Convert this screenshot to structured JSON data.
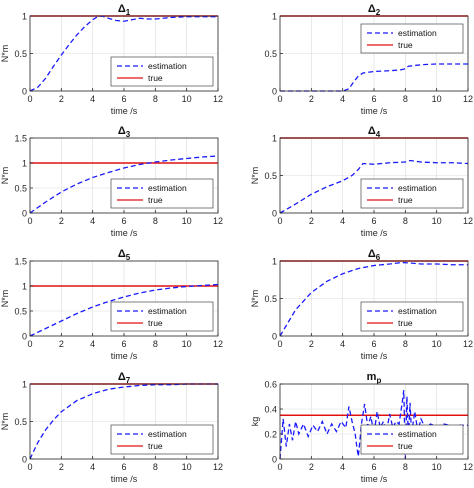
{
  "figure": {
    "xlabel": "time /s",
    "legend": {
      "estimation": "estimation",
      "true": "true"
    },
    "colors": {
      "estimation": "#1a1aff",
      "true": "#e01010",
      "axis": "#262626",
      "grid": "#dddddd"
    }
  },
  "chart_data": [
    {
      "type": "line",
      "title": "Δ1",
      "title_base": "Δ",
      "title_sub": "1",
      "xlabel": "time /s",
      "ylabel": "N*m",
      "xlim": [
        0,
        12
      ],
      "ylim": [
        0,
        1
      ],
      "xticks": [
        0,
        2,
        4,
        6,
        8,
        10,
        12
      ],
      "yticks": [
        0,
        0.5,
        1
      ],
      "ytick_labels": [
        "0",
        "0.5",
        "1"
      ],
      "grid": true,
      "legend_position": "bottom-right",
      "series": [
        {
          "name": "estimation",
          "style": "dashed",
          "x": [
            0,
            0.5,
            1,
            1.5,
            2,
            2.5,
            3,
            3.5,
            4,
            4.3,
            4.6,
            5,
            5.5,
            6,
            6.5,
            7,
            7.5,
            8,
            8.5,
            9,
            10,
            11,
            12
          ],
          "y": [
            0,
            0.05,
            0.17,
            0.33,
            0.48,
            0.62,
            0.75,
            0.86,
            0.95,
            0.99,
            1.0,
            0.97,
            0.94,
            0.93,
            0.95,
            0.97,
            0.96,
            0.96,
            0.97,
            0.98,
            0.99,
            0.99,
            0.99
          ]
        },
        {
          "name": "true",
          "style": "solid",
          "x": [
            0,
            12
          ],
          "y": [
            1,
            1
          ]
        }
      ]
    },
    {
      "type": "line",
      "title": "Δ2",
      "title_base": "Δ",
      "title_sub": "2",
      "xlabel": "time /s",
      "ylabel": "",
      "xlim": [
        0,
        12
      ],
      "ylim": [
        0,
        1
      ],
      "xticks": [
        0,
        2,
        4,
        6,
        8,
        10,
        12
      ],
      "yticks": [
        0,
        0.5,
        1
      ],
      "ytick_labels": [
        "0",
        "0.5",
        "1"
      ],
      "grid": true,
      "legend_position": "top-right",
      "series": [
        {
          "name": "estimation",
          "style": "dashed",
          "x": [
            0,
            2,
            4,
            4.4,
            4.7,
            5,
            5.3,
            6,
            7,
            7.6,
            7.9,
            8.2,
            9,
            10,
            11,
            12
          ],
          "y": [
            0,
            0,
            0,
            0.03,
            0.12,
            0.2,
            0.24,
            0.26,
            0.27,
            0.28,
            0.29,
            0.33,
            0.35,
            0.36,
            0.36,
            0.36
          ]
        },
        {
          "name": "true",
          "style": "solid",
          "x": [
            0,
            12
          ],
          "y": [
            1,
            1
          ]
        }
      ]
    },
    {
      "type": "line",
      "title": "Δ3",
      "title_base": "Δ",
      "title_sub": "3",
      "xlabel": "time /s",
      "ylabel": "N*m",
      "xlim": [
        0,
        12
      ],
      "ylim": [
        0,
        1.5
      ],
      "xticks": [
        0,
        2,
        4,
        6,
        8,
        10,
        12
      ],
      "yticks": [
        0,
        0.5,
        1,
        1.5
      ],
      "ytick_labels": [
        "0",
        "0.5",
        "1",
        "1.5"
      ],
      "grid": true,
      "legend_position": "bottom-right",
      "series": [
        {
          "name": "estimation",
          "style": "dashed",
          "x": [
            0,
            1,
            2,
            3,
            4,
            5,
            6,
            7,
            8,
            9,
            10,
            11,
            12
          ],
          "y": [
            0,
            0.22,
            0.42,
            0.58,
            0.71,
            0.81,
            0.9,
            0.97,
            1.02,
            1.06,
            1.09,
            1.12,
            1.14
          ]
        },
        {
          "name": "true",
          "style": "solid",
          "x": [
            0,
            12
          ],
          "y": [
            1,
            1
          ]
        }
      ]
    },
    {
      "type": "line",
      "title": "Δ4",
      "title_base": "Δ",
      "title_sub": "4",
      "xlabel": "time /s",
      "ylabel": "N*m",
      "xlim": [
        0,
        12
      ],
      "ylim": [
        0,
        1
      ],
      "xticks": [
        0,
        2,
        4,
        6,
        8,
        10,
        12
      ],
      "yticks": [
        0,
        0.5,
        1
      ],
      "ytick_labels": [
        "0",
        "0.5",
        "1"
      ],
      "grid": true,
      "legend_position": "bottom-right",
      "series": [
        {
          "name": "estimation",
          "style": "dashed",
          "x": [
            0,
            1,
            2,
            3,
            4,
            4.6,
            5,
            5.3,
            6,
            7,
            8,
            8.3,
            9,
            10,
            11,
            12
          ],
          "y": [
            0,
            0.12,
            0.25,
            0.35,
            0.43,
            0.5,
            0.58,
            0.66,
            0.65,
            0.67,
            0.68,
            0.7,
            0.68,
            0.67,
            0.67,
            0.66
          ]
        },
        {
          "name": "true",
          "style": "solid",
          "x": [
            0,
            12
          ],
          "y": [
            1,
            1
          ]
        }
      ]
    },
    {
      "type": "line",
      "title": "Δ5",
      "title_base": "Δ",
      "title_sub": "5",
      "xlabel": "time /s",
      "ylabel": "N*m",
      "xlim": [
        0,
        12
      ],
      "ylim": [
        0,
        1.5
      ],
      "xticks": [
        0,
        2,
        4,
        6,
        8,
        10,
        12
      ],
      "yticks": [
        0,
        0.5,
        1,
        1.5
      ],
      "ytick_labels": [
        "0",
        "0.5",
        "1",
        "1.5"
      ],
      "grid": true,
      "legend_position": "bottom-right",
      "series": [
        {
          "name": "estimation",
          "style": "dashed",
          "x": [
            0,
            1,
            2,
            3,
            4,
            5,
            6,
            7,
            8,
            9,
            10,
            11,
            12
          ],
          "y": [
            0,
            0.15,
            0.3,
            0.45,
            0.58,
            0.69,
            0.78,
            0.86,
            0.92,
            0.96,
            0.99,
            1.01,
            1.03
          ]
        },
        {
          "name": "true",
          "style": "solid",
          "x": [
            0,
            12
          ],
          "y": [
            1,
            1
          ]
        }
      ]
    },
    {
      "type": "line",
      "title": "Δ6",
      "title_base": "Δ",
      "title_sub": "6",
      "xlabel": "time /s",
      "ylabel": "N*m",
      "xlim": [
        0,
        12
      ],
      "ylim": [
        0,
        1
      ],
      "xticks": [
        0,
        2,
        4,
        6,
        8,
        10,
        12
      ],
      "yticks": [
        0,
        0.5,
        1
      ],
      "ytick_labels": [
        "0",
        "0.5",
        "1"
      ],
      "grid": true,
      "legend_position": "bottom-right",
      "series": [
        {
          "name": "estimation",
          "style": "dashed",
          "x": [
            0,
            1,
            2,
            3,
            4,
            5,
            6,
            7,
            7.8,
            8.5,
            9,
            10,
            11,
            12
          ],
          "y": [
            0,
            0.35,
            0.58,
            0.73,
            0.83,
            0.9,
            0.94,
            0.96,
            0.98,
            0.97,
            0.96,
            0.96,
            0.95,
            0.95
          ]
        },
        {
          "name": "true",
          "style": "solid",
          "x": [
            0,
            12
          ],
          "y": [
            1,
            1
          ]
        }
      ]
    },
    {
      "type": "line",
      "title": "Δ7",
      "title_base": "Δ",
      "title_sub": "7",
      "xlabel": "time /s",
      "ylabel": "N*m",
      "xlim": [
        0,
        12
      ],
      "ylim": [
        0,
        1
      ],
      "xticks": [
        0,
        2,
        4,
        6,
        8,
        10,
        12
      ],
      "yticks": [
        0,
        0.5,
        1
      ],
      "ytick_labels": [
        "0",
        "0.5",
        "1"
      ],
      "grid": true,
      "legend_position": "bottom-right",
      "series": [
        {
          "name": "estimation",
          "style": "dashed",
          "x": [
            0,
            0.5,
            1,
            1.5,
            2,
            3,
            4,
            5,
            6,
            7,
            8,
            9,
            10,
            11,
            12
          ],
          "y": [
            0,
            0.22,
            0.39,
            0.52,
            0.63,
            0.78,
            0.87,
            0.93,
            0.96,
            0.98,
            0.99,
            0.99,
            1.0,
            1.0,
            1.0
          ]
        },
        {
          "name": "true",
          "style": "solid",
          "x": [
            0,
            12
          ],
          "y": [
            1,
            1
          ]
        }
      ]
    },
    {
      "type": "line",
      "title": "mp",
      "title_base": "m",
      "title_sub": "p",
      "xlabel": "time /s",
      "ylabel": "kg",
      "xlim": [
        0,
        12
      ],
      "ylim": [
        0,
        0.6
      ],
      "xticks": [
        0,
        2,
        4,
        6,
        8,
        10,
        12
      ],
      "yticks": [
        0,
        0.2,
        0.4,
        0.6
      ],
      "ytick_labels": [
        "0",
        "0.2",
        "0.4",
        "0.6"
      ],
      "grid": true,
      "legend_position": "bottom-right",
      "series": [
        {
          "name": "estimation",
          "style": "dashed",
          "x": [
            0,
            0.2,
            0.4,
            0.6,
            0.8,
            1.0,
            1.2,
            1.5,
            1.8,
            2.1,
            2.4,
            2.7,
            3.0,
            3.3,
            3.6,
            3.9,
            4.2,
            4.4,
            4.6,
            4.8,
            4.9,
            5.0,
            5.2,
            5.4,
            5.6,
            5.8,
            6.0,
            6.2,
            6.4,
            6.6,
            6.8,
            7.0,
            7.2,
            7.4,
            7.6,
            7.8,
            7.9,
            8.0,
            8.1,
            8.2,
            8.3,
            8.4,
            8.6,
            8.8,
            9.0,
            9.3,
            9.6,
            10,
            10.5,
            11,
            11.5,
            12
          ],
          "y": [
            0.0,
            0.32,
            0.1,
            0.28,
            0.15,
            0.3,
            0.2,
            0.28,
            0.18,
            0.27,
            0.22,
            0.3,
            0.2,
            0.28,
            0.22,
            0.3,
            0.25,
            0.42,
            0.3,
            0.2,
            0.1,
            0.02,
            0.28,
            0.44,
            0.26,
            0.34,
            0.2,
            0.38,
            0.25,
            0.3,
            0.22,
            0.36,
            0.25,
            0.3,
            0.28,
            0.45,
            0.55,
            0.0,
            0.5,
            0.15,
            0.45,
            0.2,
            0.38,
            0.22,
            0.32,
            0.24,
            0.28,
            0.26,
            0.28,
            0.26,
            0.27,
            0.27
          ]
        },
        {
          "name": "true",
          "style": "solid",
          "x": [
            0,
            12
          ],
          "y": [
            0.35,
            0.35
          ]
        }
      ]
    }
  ]
}
